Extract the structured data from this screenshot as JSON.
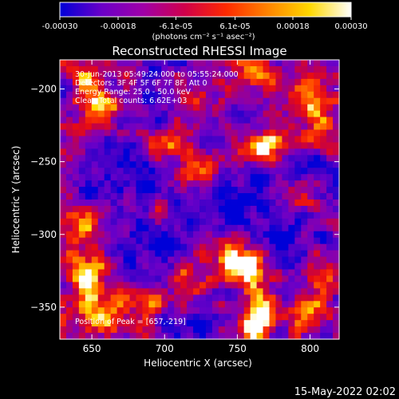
{
  "colorbar": {
    "tick_labels": [
      "-0.00030",
      "-0.00018",
      "-6.1e-05",
      "6.1e-05",
      "0.00018",
      "0.00030"
    ],
    "tick_values": [
      -0.0003,
      -0.00018,
      -6.1e-05,
      6.1e-05,
      0.00018,
      0.0003
    ],
    "range": [
      -0.0003,
      0.0003
    ],
    "units_label": "(photons cm⁻² s⁻¹ asec⁻²)",
    "colors": [
      "#0000d8",
      "#6a00c8",
      "#a000a8",
      "#d0004a",
      "#ff2a00",
      "#ff8400",
      "#ffd800",
      "#ffffff"
    ]
  },
  "chart_data": {
    "type": "heatmap",
    "title": "Reconstructed RHESSI Image",
    "xlabel": "Heliocentric X (arcsec)",
    "ylabel": "Heliocentric Y (arcsec)",
    "xlim": [
      628,
      820
    ],
    "ylim": [
      -372,
      -180
    ],
    "x_ticks": [
      650,
      700,
      750,
      800
    ],
    "y_ticks": [
      -200,
      -250,
      -300,
      -350
    ],
    "annotations": [
      "30-Jun-2013 05:49:24.000 to 05:55:24.000",
      "Detectors: 3F 4F 5F 6F 7F 8F, Att 0",
      "Energy Range: 25.0 - 50.0 keV",
      "Clean     Total counts: 6.62E+03"
    ],
    "peak_label": "Position of Peak = [657,-219]",
    "peak": [
      657,
      -219
    ],
    "bright_regions": [
      {
        "x": 655,
        "y": -213,
        "intensity": 1.0
      },
      {
        "x": 642,
        "y": -190,
        "intensity": 0.55
      },
      {
        "x": 700,
        "y": -238,
        "intensity": 0.7
      },
      {
        "x": 722,
        "y": -215,
        "intensity": 0.45
      },
      {
        "x": 740,
        "y": -200,
        "intensity": 0.55
      },
      {
        "x": 765,
        "y": -190,
        "intensity": 0.6
      },
      {
        "x": 770,
        "y": -240,
        "intensity": 0.75
      },
      {
        "x": 800,
        "y": -205,
        "intensity": 0.8
      },
      {
        "x": 810,
        "y": -225,
        "intensity": 0.6
      },
      {
        "x": 720,
        "y": -255,
        "intensity": 0.4
      },
      {
        "x": 700,
        "y": -290,
        "intensity": 0.4
      },
      {
        "x": 790,
        "y": -275,
        "intensity": 0.45
      },
      {
        "x": 640,
        "y": -298,
        "intensity": 0.5
      },
      {
        "x": 648,
        "y": -325,
        "intensity": 0.85
      },
      {
        "x": 645,
        "y": -345,
        "intensity": 0.75
      },
      {
        "x": 660,
        "y": -360,
        "intensity": 0.6
      },
      {
        "x": 690,
        "y": -350,
        "intensity": 0.55
      },
      {
        "x": 720,
        "y": -330,
        "intensity": 0.5
      },
      {
        "x": 745,
        "y": -318,
        "intensity": 0.65
      },
      {
        "x": 760,
        "y": -325,
        "intensity": 0.85
      },
      {
        "x": 768,
        "y": -350,
        "intensity": 0.8
      },
      {
        "x": 760,
        "y": -365,
        "intensity": 0.6
      },
      {
        "x": 800,
        "y": -355,
        "intensity": 0.7
      },
      {
        "x": 810,
        "y": -328,
        "intensity": 0.6
      }
    ],
    "dim_regions": [
      {
        "x": 685,
        "y": -255,
        "depth": 0.8
      },
      {
        "x": 705,
        "y": -300,
        "depth": 0.6
      },
      {
        "x": 760,
        "y": -285,
        "depth": 0.5
      },
      {
        "x": 658,
        "y": -255,
        "depth": 0.6
      },
      {
        "x": 790,
        "y": -305,
        "depth": 0.5
      },
      {
        "x": 742,
        "y": -275,
        "depth": 0.5
      },
      {
        "x": 680,
        "y": -310,
        "depth": 0.5
      },
      {
        "x": 720,
        "y": -370,
        "depth": 0.4
      },
      {
        "x": 735,
        "y": -200,
        "depth": 0.4
      },
      {
        "x": 805,
        "y": -260,
        "depth": 0.4
      }
    ]
  },
  "footer": {
    "timestamp": "15-May-2022 02:02"
  }
}
